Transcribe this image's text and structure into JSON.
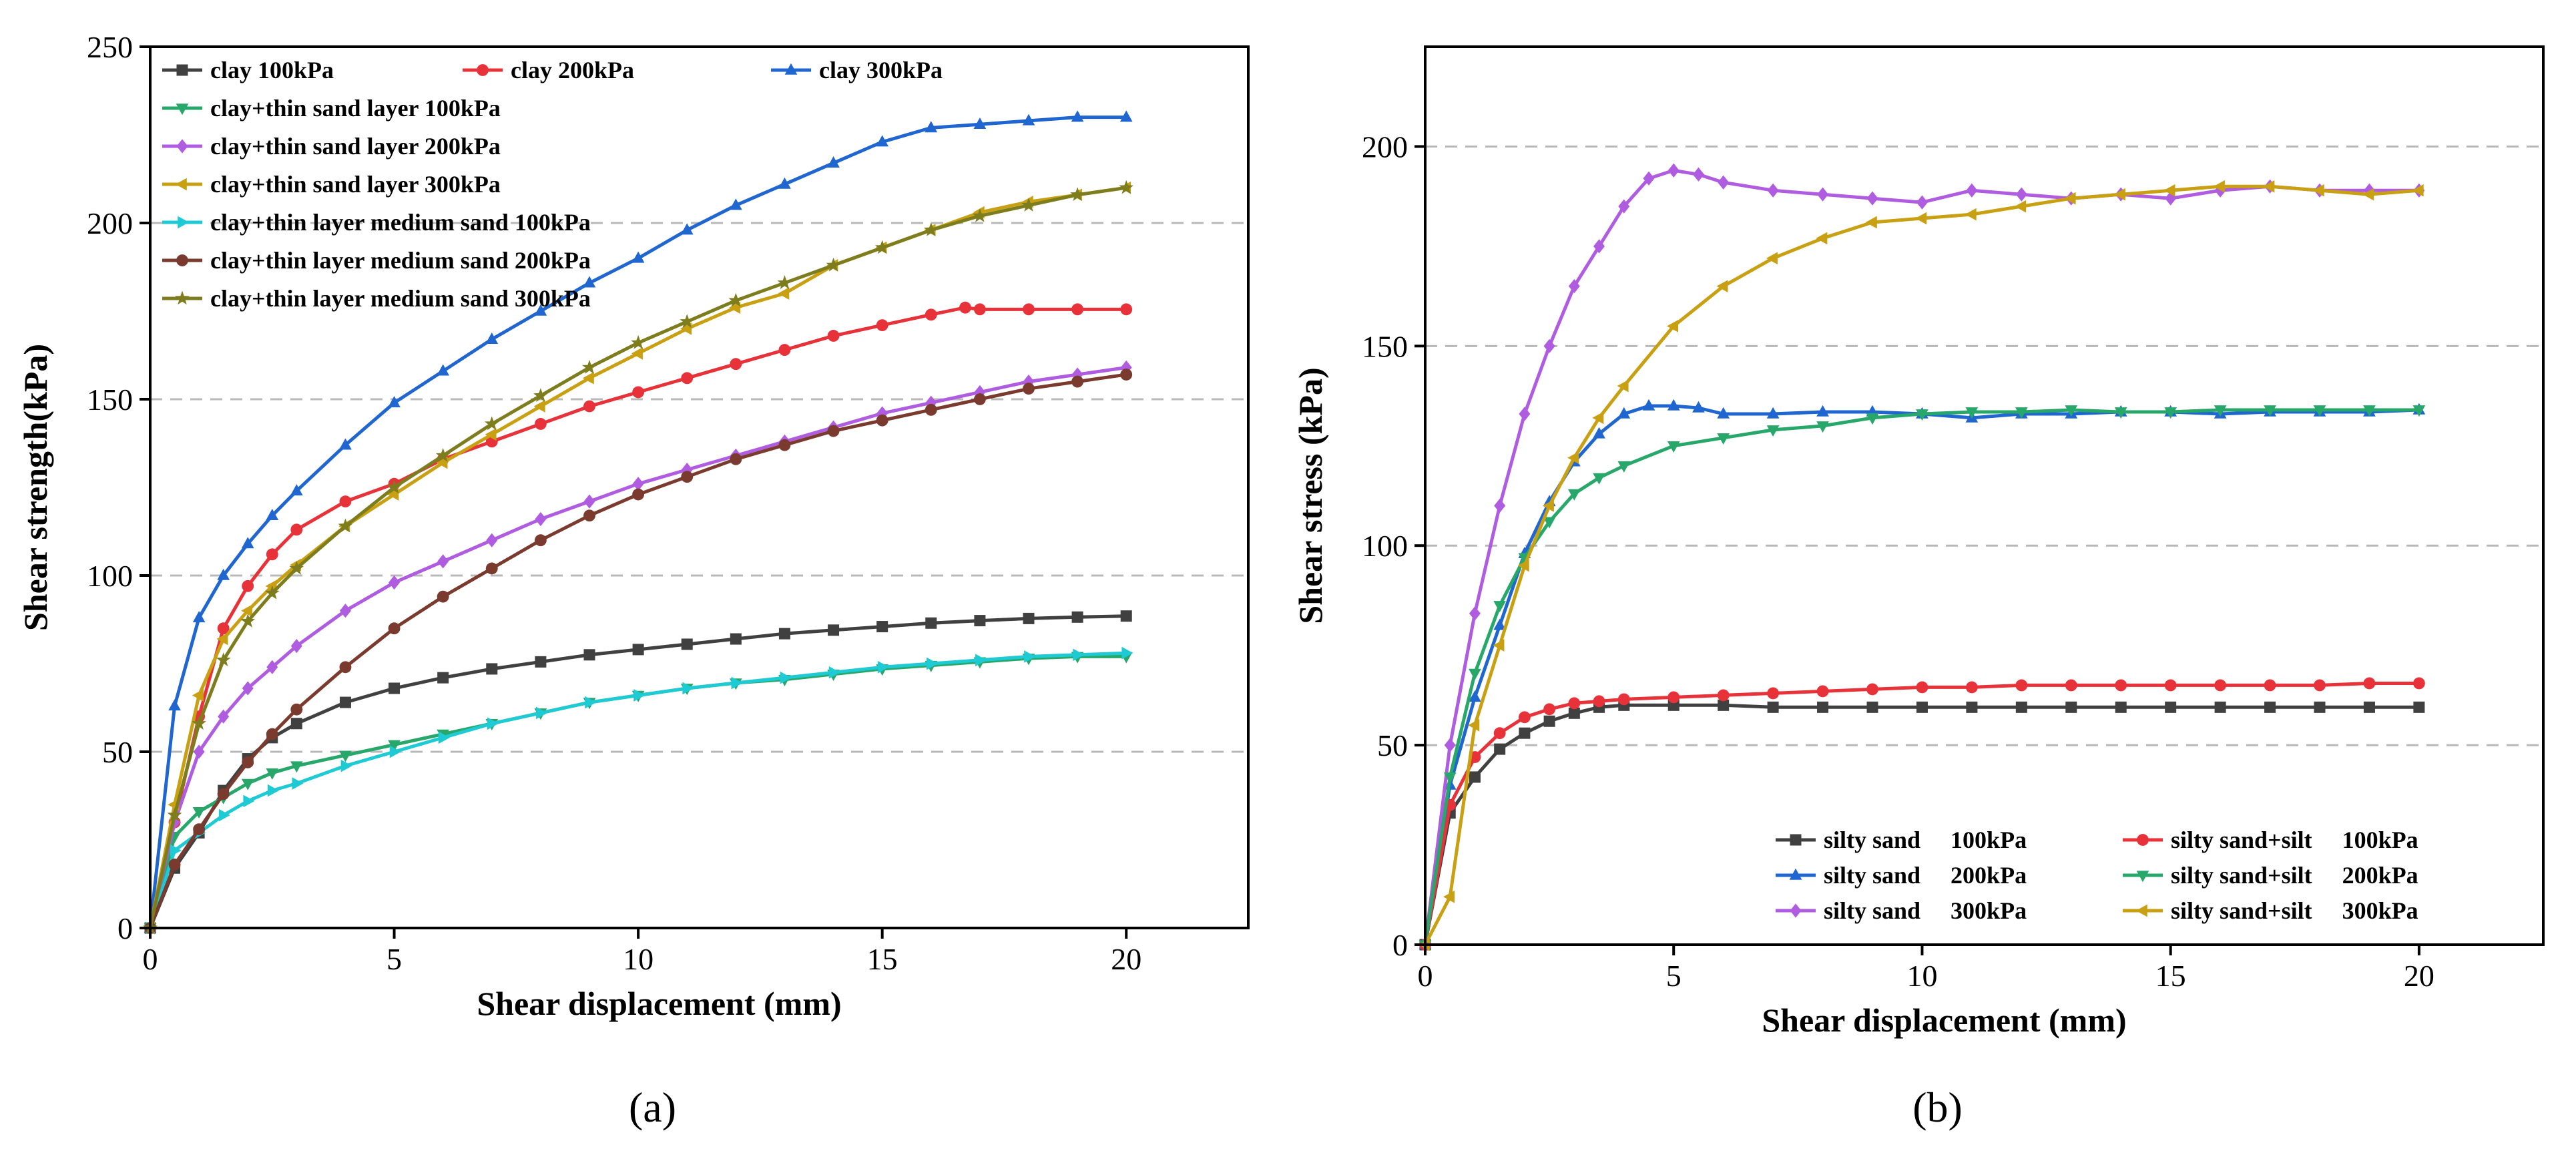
{
  "chart_data": [
    {
      "type": "line",
      "panel_label": "(a)",
      "xlabel": "Shear displacement (mm)",
      "ylabel": "Shear strength(kPa)",
      "xlim": [
        0,
        22.5
      ],
      "ylim": [
        0,
        250
      ],
      "xticks": [
        0,
        5,
        10,
        15,
        20
      ],
      "yticks": [
        0,
        50,
        100,
        150,
        200,
        250
      ],
      "grid": "horizontal dashed",
      "legend_position": "top-left",
      "series": [
        {
          "name": "clay 100kPa",
          "color": "#404040",
          "marker": "square",
          "x": [
            0,
            0.5,
            1,
            1.5,
            2,
            2.5,
            3,
            4,
            5,
            6,
            7,
            8,
            9,
            10,
            11,
            12,
            13,
            14,
            15,
            16,
            17,
            18,
            19,
            20
          ],
          "y": [
            0,
            17,
            27,
            39,
            48,
            54,
            58,
            64,
            68,
            71,
            73.5,
            75.5,
            77.5,
            79,
            80.5,
            82,
            83.5,
            84.5,
            85.5,
            86.5,
            87.2,
            87.8,
            88.2,
            88.5
          ]
        },
        {
          "name": "clay 200kPa",
          "color": "#e8323a",
          "marker": "circle",
          "x": [
            0,
            0.5,
            1,
            1.5,
            2,
            2.5,
            3,
            4,
            5,
            6,
            7,
            8,
            9,
            10,
            11,
            12,
            13,
            14,
            15,
            16,
            16.7,
            17,
            18,
            19,
            20
          ],
          "y": [
            0,
            30,
            60,
            85,
            97,
            106,
            113,
            121,
            126,
            133,
            138,
            143,
            148,
            152,
            156,
            160,
            164,
            168,
            171,
            174,
            176,
            175.5,
            175.5,
            175.5,
            175.5
          ]
        },
        {
          "name": "clay 300kPa",
          "color": "#1f66d1",
          "marker": "triangle-up",
          "x": [
            0,
            0.5,
            1,
            1.5,
            2,
            2.5,
            3,
            4,
            5,
            6,
            7,
            8,
            9,
            10,
            11,
            12,
            13,
            14,
            15,
            16,
            17,
            18,
            19,
            20
          ],
          "y": [
            0,
            63,
            88,
            100,
            109,
            117,
            124,
            137,
            149,
            158,
            167,
            175,
            183,
            190,
            198,
            205,
            211,
            217,
            223,
            227,
            228,
            229,
            230,
            230
          ]
        },
        {
          "name": "clay+thin sand layer 100kPa",
          "color": "#27a86a",
          "marker": "triangle-down",
          "x": [
            0,
            0.5,
            1,
            1.5,
            2,
            2.5,
            3,
            4,
            5,
            6,
            7,
            8,
            9,
            10,
            11,
            12,
            13,
            14,
            15,
            16,
            17,
            18,
            19,
            20
          ],
          "y": [
            0,
            26,
            33,
            37,
            41,
            44,
            46,
            49,
            52,
            55,
            58,
            61,
            64,
            66,
            68,
            69.5,
            70.5,
            72,
            73.5,
            74.5,
            75.5,
            76.5,
            77,
            77
          ]
        },
        {
          "name": "clay+thin sand layer 200kPa",
          "color": "#b05ce0",
          "marker": "diamond",
          "x": [
            0,
            0.5,
            1,
            1.5,
            2,
            2.5,
            3,
            4,
            5,
            6,
            7,
            8,
            9,
            10,
            11,
            12,
            13,
            14,
            15,
            16,
            17,
            18,
            19,
            20
          ],
          "y": [
            0,
            30,
            50,
            60,
            68,
            74,
            80,
            90,
            98,
            104,
            110,
            116,
            121,
            126,
            130,
            134,
            138,
            142,
            146,
            149,
            152,
            155,
            157,
            159
          ]
        },
        {
          "name": "clay+thin sand layer 300kPa",
          "color": "#c8a012",
          "marker": "triangle-left",
          "x": [
            0,
            0.5,
            1,
            1.5,
            2,
            2.5,
            3,
            4,
            5,
            6,
            7,
            8,
            9,
            10,
            11,
            12,
            13,
            14,
            15,
            16,
            17,
            18,
            19,
            20
          ],
          "y": [
            0,
            35,
            66,
            82,
            90,
            97,
            103,
            114,
            123,
            132,
            140,
            148,
            156,
            163,
            170,
            176,
            180,
            188,
            193,
            198,
            203,
            206,
            208,
            210
          ]
        },
        {
          "name": "clay+thin layer medium sand 100kPa",
          "color": "#1ecad3",
          "marker": "triangle-right",
          "x": [
            0,
            0.5,
            1,
            1.5,
            2,
            2.5,
            3,
            4,
            5,
            6,
            7,
            8,
            9,
            10,
            11,
            12,
            13,
            14,
            15,
            16,
            17,
            18,
            19,
            20
          ],
          "y": [
            0,
            22,
            27,
            32,
            36,
            39,
            41,
            46,
            50,
            54,
            58,
            61,
            64,
            66,
            68,
            69.5,
            71,
            72.5,
            74,
            75,
            76,
            77,
            77.5,
            78
          ]
        },
        {
          "name": "clay+thin layer medium sand 200kPa",
          "color": "#7a3a2e",
          "marker": "circle",
          "x": [
            0,
            0.5,
            1,
            1.5,
            2,
            2.5,
            3,
            4,
            5,
            6,
            7,
            8,
            9,
            10,
            11,
            12,
            13,
            14,
            15,
            16,
            17,
            18,
            19,
            20
          ],
          "y": [
            0,
            18,
            28,
            38,
            47,
            55,
            62,
            74,
            85,
            94,
            102,
            110,
            117,
            123,
            128,
            133,
            137,
            141,
            144,
            147,
            150,
            153,
            155,
            157
          ]
        },
        {
          "name": "clay+thin layer medium sand 300kPa",
          "color": "#7d7d1d",
          "marker": "star",
          "x": [
            0,
            0.5,
            1,
            1.5,
            2,
            2.5,
            3,
            4,
            5,
            6,
            7,
            8,
            9,
            10,
            11,
            12,
            13,
            14,
            15,
            16,
            17,
            18,
            19,
            20
          ],
          "y": [
            0,
            32,
            58,
            76,
            87,
            95,
            102,
            114,
            125,
            134,
            143,
            151,
            159,
            166,
            172,
            178,
            183,
            188,
            193,
            198,
            202,
            205,
            208,
            210
          ]
        }
      ]
    },
    {
      "type": "line",
      "panel_label": "(b)",
      "xlabel": "Shear displacement (mm)",
      "ylabel": "Shear stress (kPa)",
      "xlim": [
        0,
        22.5
      ],
      "ylim": [
        0,
        225
      ],
      "xticks": [
        0,
        5,
        10,
        15,
        20
      ],
      "yticks": [
        0,
        50,
        100,
        150,
        200
      ],
      "grid": "horizontal dashed",
      "legend_position": "bottom-right",
      "series": [
        {
          "name": "silty sand     100kPa",
          "color": "#404040",
          "marker": "square",
          "x": [
            0,
            0.5,
            1,
            1.5,
            2,
            2.5,
            3,
            3.5,
            4,
            5,
            6,
            7,
            8,
            9,
            10,
            11,
            12,
            13,
            14,
            15,
            16,
            17,
            18,
            19,
            20
          ],
          "y": [
            0,
            33,
            42,
            49,
            53,
            56,
            58,
            59.5,
            60,
            60,
            60,
            59.5,
            59.5,
            59.5,
            59.5,
            59.5,
            59.5,
            59.5,
            59.5,
            59.5,
            59.5,
            59.5,
            59.5,
            59.5,
            59.5
          ]
        },
        {
          "name": "silty sand     200kPa",
          "color": "#1f66d1",
          "marker": "triangle-up",
          "x": [
            0,
            0.5,
            1,
            1.5,
            2,
            2.5,
            3,
            3.5,
            4,
            4.5,
            5,
            5.5,
            6,
            7,
            8,
            9,
            10,
            11,
            12,
            13,
            14,
            15,
            16,
            17,
            18,
            19,
            20
          ],
          "y": [
            0,
            40,
            62,
            80,
            98,
            111,
            121,
            128,
            133,
            135,
            135,
            134.5,
            133,
            133,
            133.5,
            133.5,
            133,
            132,
            133,
            133,
            133.5,
            133.5,
            133,
            133.5,
            133.5,
            133.5,
            134
          ]
        },
        {
          "name": "silty sand     300kPa",
          "color": "#b05ce0",
          "marker": "diamond",
          "x": [
            0,
            0.5,
            1,
            1.5,
            2,
            2.5,
            3,
            3.5,
            4,
            4.5,
            5,
            5.5,
            6,
            7,
            8,
            9,
            10,
            11,
            12,
            13,
            14,
            15,
            16,
            17,
            18,
            19,
            20
          ],
          "y": [
            0,
            50,
            83,
            110,
            133,
            150,
            165,
            175,
            185,
            192,
            194,
            193,
            191,
            189,
            188,
            187,
            186,
            189,
            188,
            187,
            188,
            187,
            189,
            190,
            189,
            189,
            189
          ]
        },
        {
          "name": "silty sand+silt     100kPa",
          "color": "#e8323a",
          "marker": "circle",
          "x": [
            0,
            0.5,
            1,
            1.5,
            2,
            2.5,
            3,
            3.5,
            4,
            5,
            6,
            7,
            8,
            9,
            10,
            11,
            12,
            13,
            14,
            15,
            16,
            17,
            18,
            19,
            20
          ],
          "y": [
            0,
            35,
            47,
            53,
            57,
            59,
            60.5,
            61,
            61.5,
            62,
            62.5,
            63,
            63.5,
            64,
            64.5,
            64.5,
            65,
            65,
            65,
            65,
            65,
            65,
            65,
            65.5,
            65.5
          ]
        },
        {
          "name": "silty sand+silt     200kPa",
          "color": "#27a86a",
          "marker": "triangle-down",
          "x": [
            0,
            0.5,
            1,
            1.5,
            2,
            2.5,
            3,
            3.5,
            4,
            5,
            6,
            7,
            8,
            9,
            10,
            11,
            12,
            13,
            14,
            15,
            16,
            17,
            18,
            19,
            20
          ],
          "y": [
            0,
            42,
            68,
            85,
            97,
            106,
            113,
            117,
            120,
            125,
            127,
            129,
            130,
            132,
            133,
            133.5,
            133.5,
            134,
            133.5,
            133.5,
            134,
            134,
            134,
            134,
            134
          ]
        },
        {
          "name": "silty sand+silt     300kPa",
          "color": "#c8a012",
          "marker": "triangle-left",
          "x": [
            0,
            0.5,
            1,
            1.5,
            2,
            2.5,
            3,
            3.5,
            4,
            5,
            6,
            7,
            8,
            9,
            10,
            11,
            12,
            13,
            14,
            15,
            16,
            17,
            18,
            19,
            20
          ],
          "y": [
            0,
            12,
            55,
            75,
            95,
            110,
            122,
            132,
            140,
            155,
            165,
            172,
            177,
            181,
            182,
            183,
            185,
            187,
            188,
            189,
            190,
            190,
            189,
            188,
            189
          ]
        }
      ]
    }
  ]
}
